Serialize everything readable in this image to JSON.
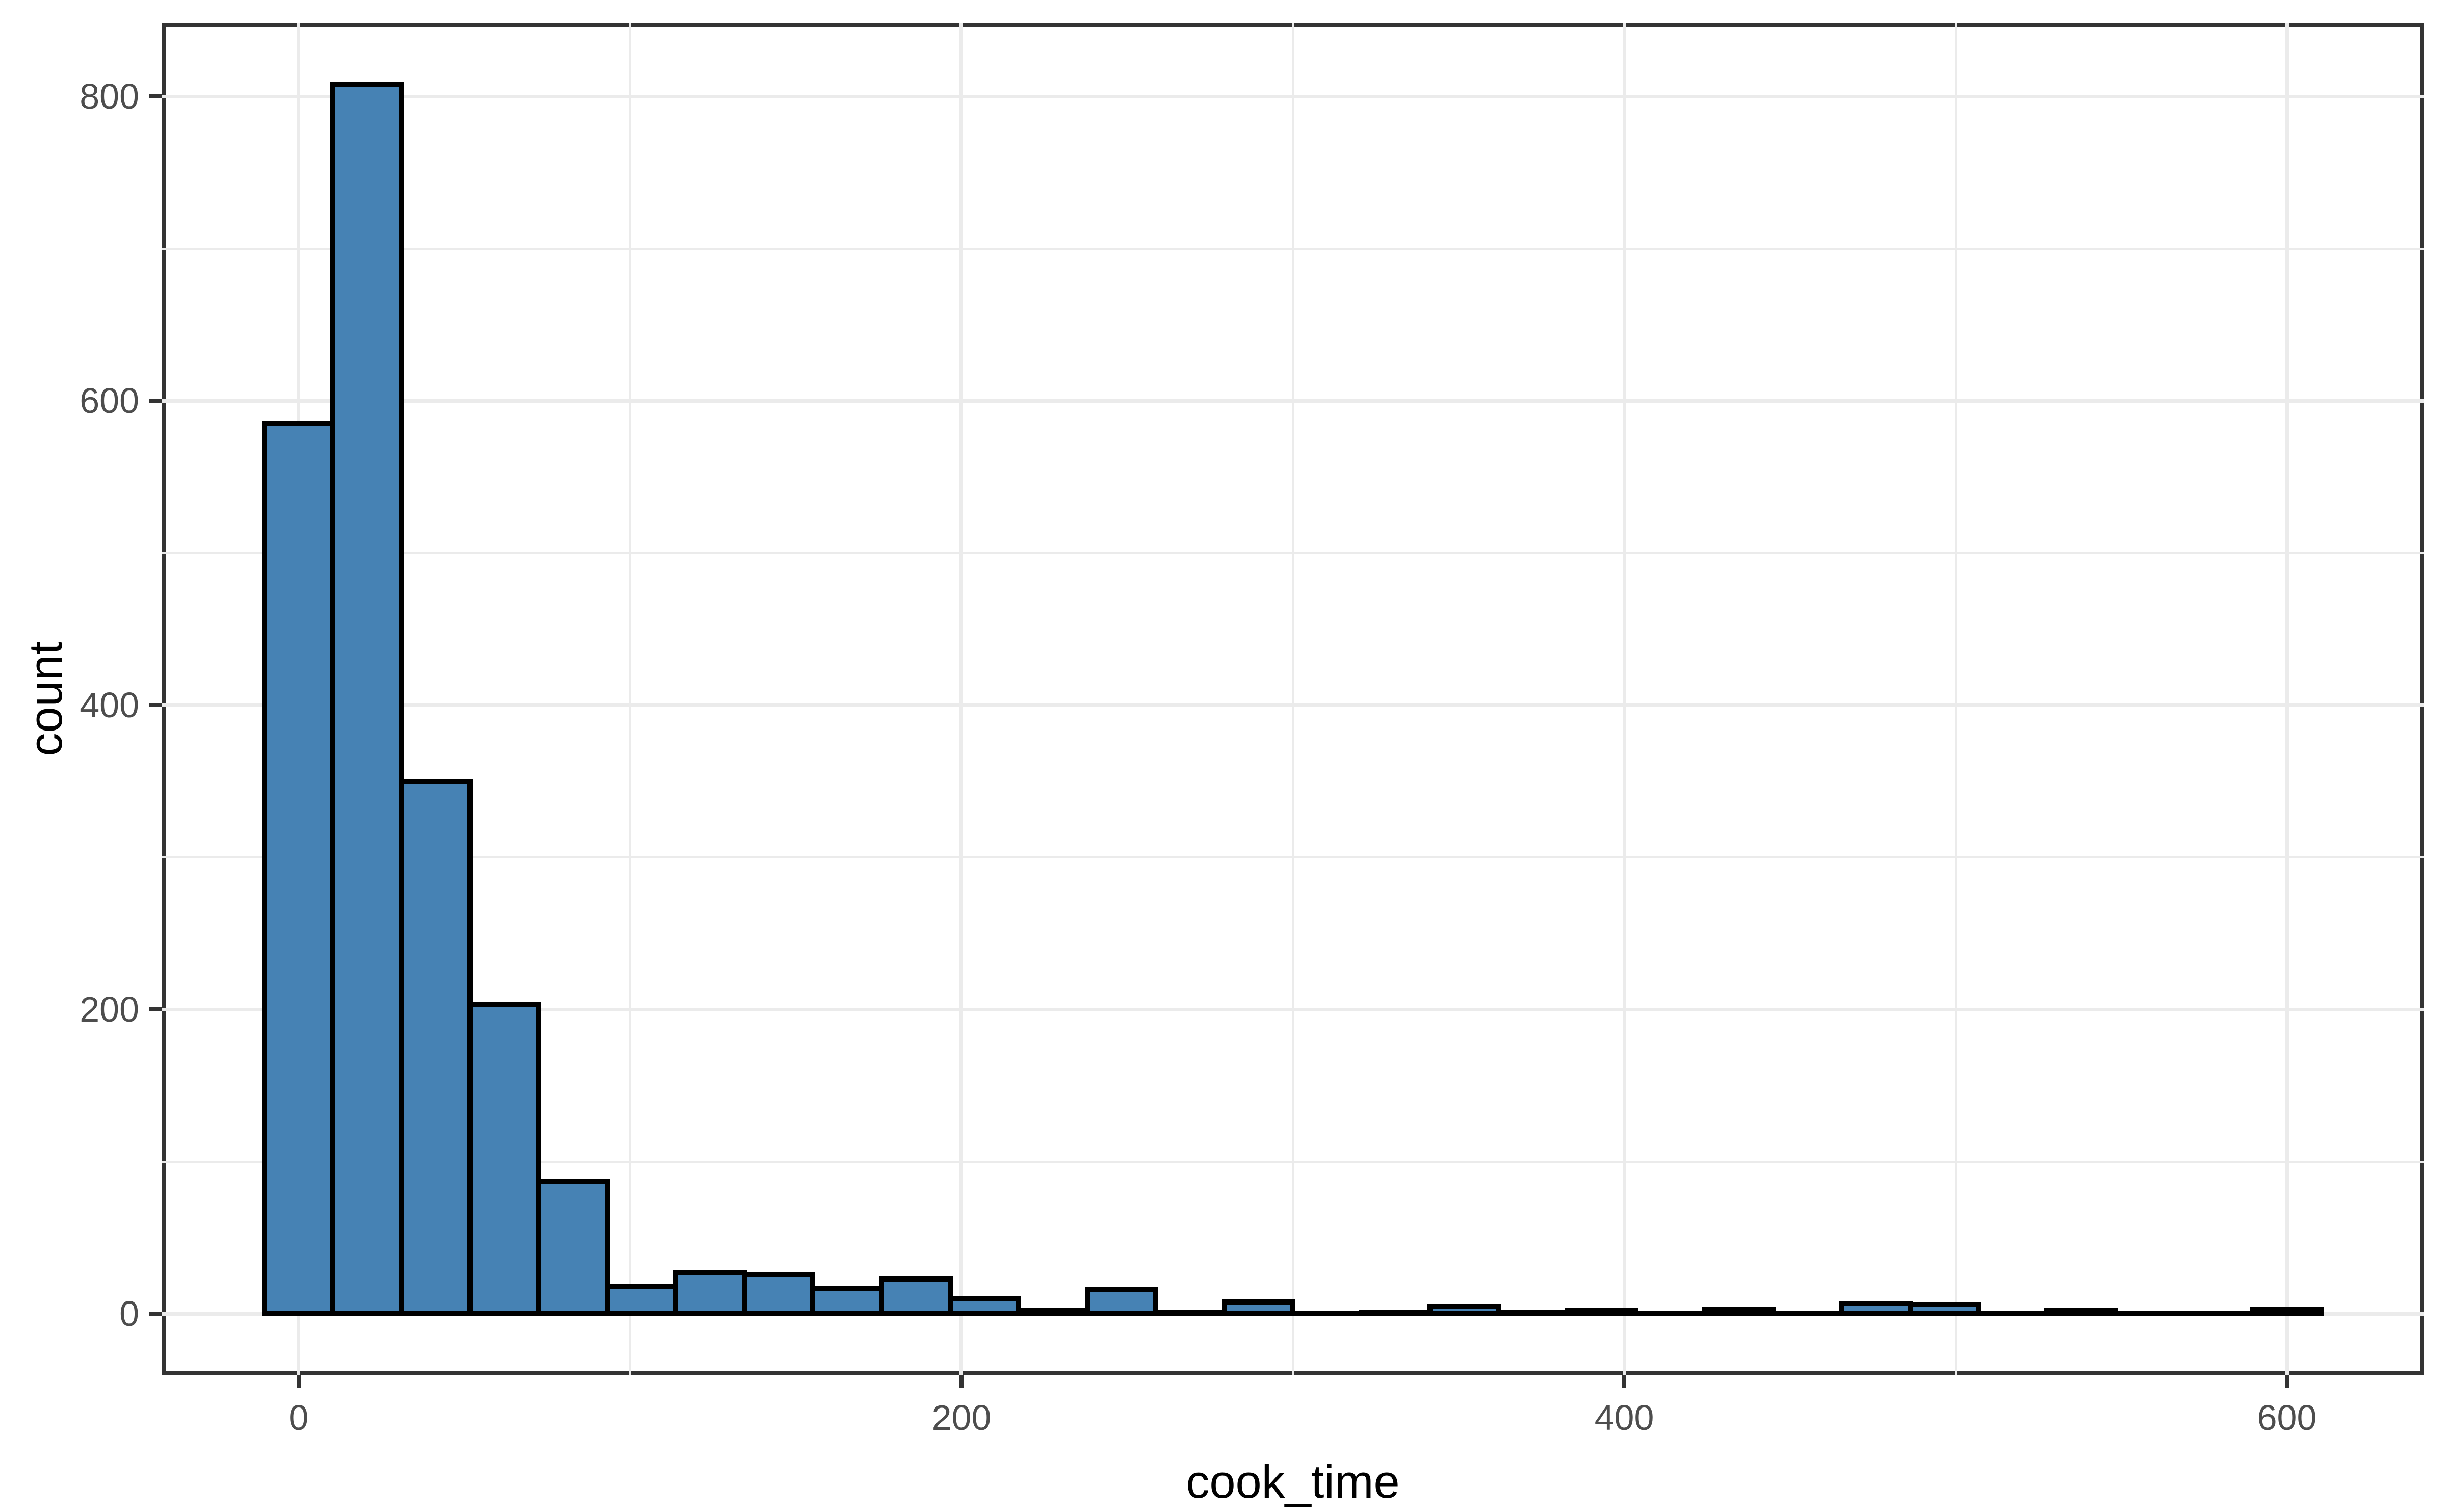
{
  "figure": {
    "background": "#ffffff",
    "panel_border_color": "#333333",
    "gridline_color": "#ebebeb",
    "tick_color": "#333333",
    "tick_label_color": "#4d4d4d",
    "axis_title_color": "#000000"
  },
  "chart_data": {
    "type": "bar",
    "subtype": "histogram",
    "title": "",
    "xlabel": "cook_time",
    "ylabel": "count",
    "bar_fill_color": "#4682b4",
    "bar_stroke_color": "#000000",
    "bin_width": 20.69,
    "bin_centers": [
      0,
      20.7,
      41.4,
      62.1,
      82.8,
      103.4,
      124.1,
      144.8,
      165.5,
      186.2,
      206.9,
      227.6,
      248.3,
      269.0,
      289.7,
      310.3,
      331.0,
      351.7,
      372.4,
      393.1,
      413.8,
      434.5,
      455.2,
      475.9,
      496.6,
      517.2,
      537.9,
      558.6,
      579.3,
      600.0
    ],
    "counts": [
      585,
      808,
      350,
      203,
      87,
      18,
      27,
      26,
      17,
      23,
      10,
      2,
      16,
      1,
      8,
      0,
      1,
      5,
      1,
      2,
      0,
      3,
      0,
      7,
      6,
      0,
      2,
      0,
      0,
      3
    ],
    "x_major_ticks": [
      0,
      200,
      400,
      600
    ],
    "x_major_tick_labels": [
      "0",
      "200",
      "400",
      "600"
    ],
    "x_minor_gridlines": [
      100,
      300,
      500
    ],
    "y_major_ticks": [
      0,
      200,
      400,
      600,
      800
    ],
    "y_major_tick_labels": [
      "0",
      "200",
      "400",
      "600",
      "800"
    ],
    "y_minor_gridlines": [
      100,
      300,
      500,
      700
    ],
    "xlim": [
      -41.38,
      641.38
    ],
    "ylim": [
      -40.4,
      848.4
    ],
    "grid": true,
    "legend_position": "none"
  }
}
